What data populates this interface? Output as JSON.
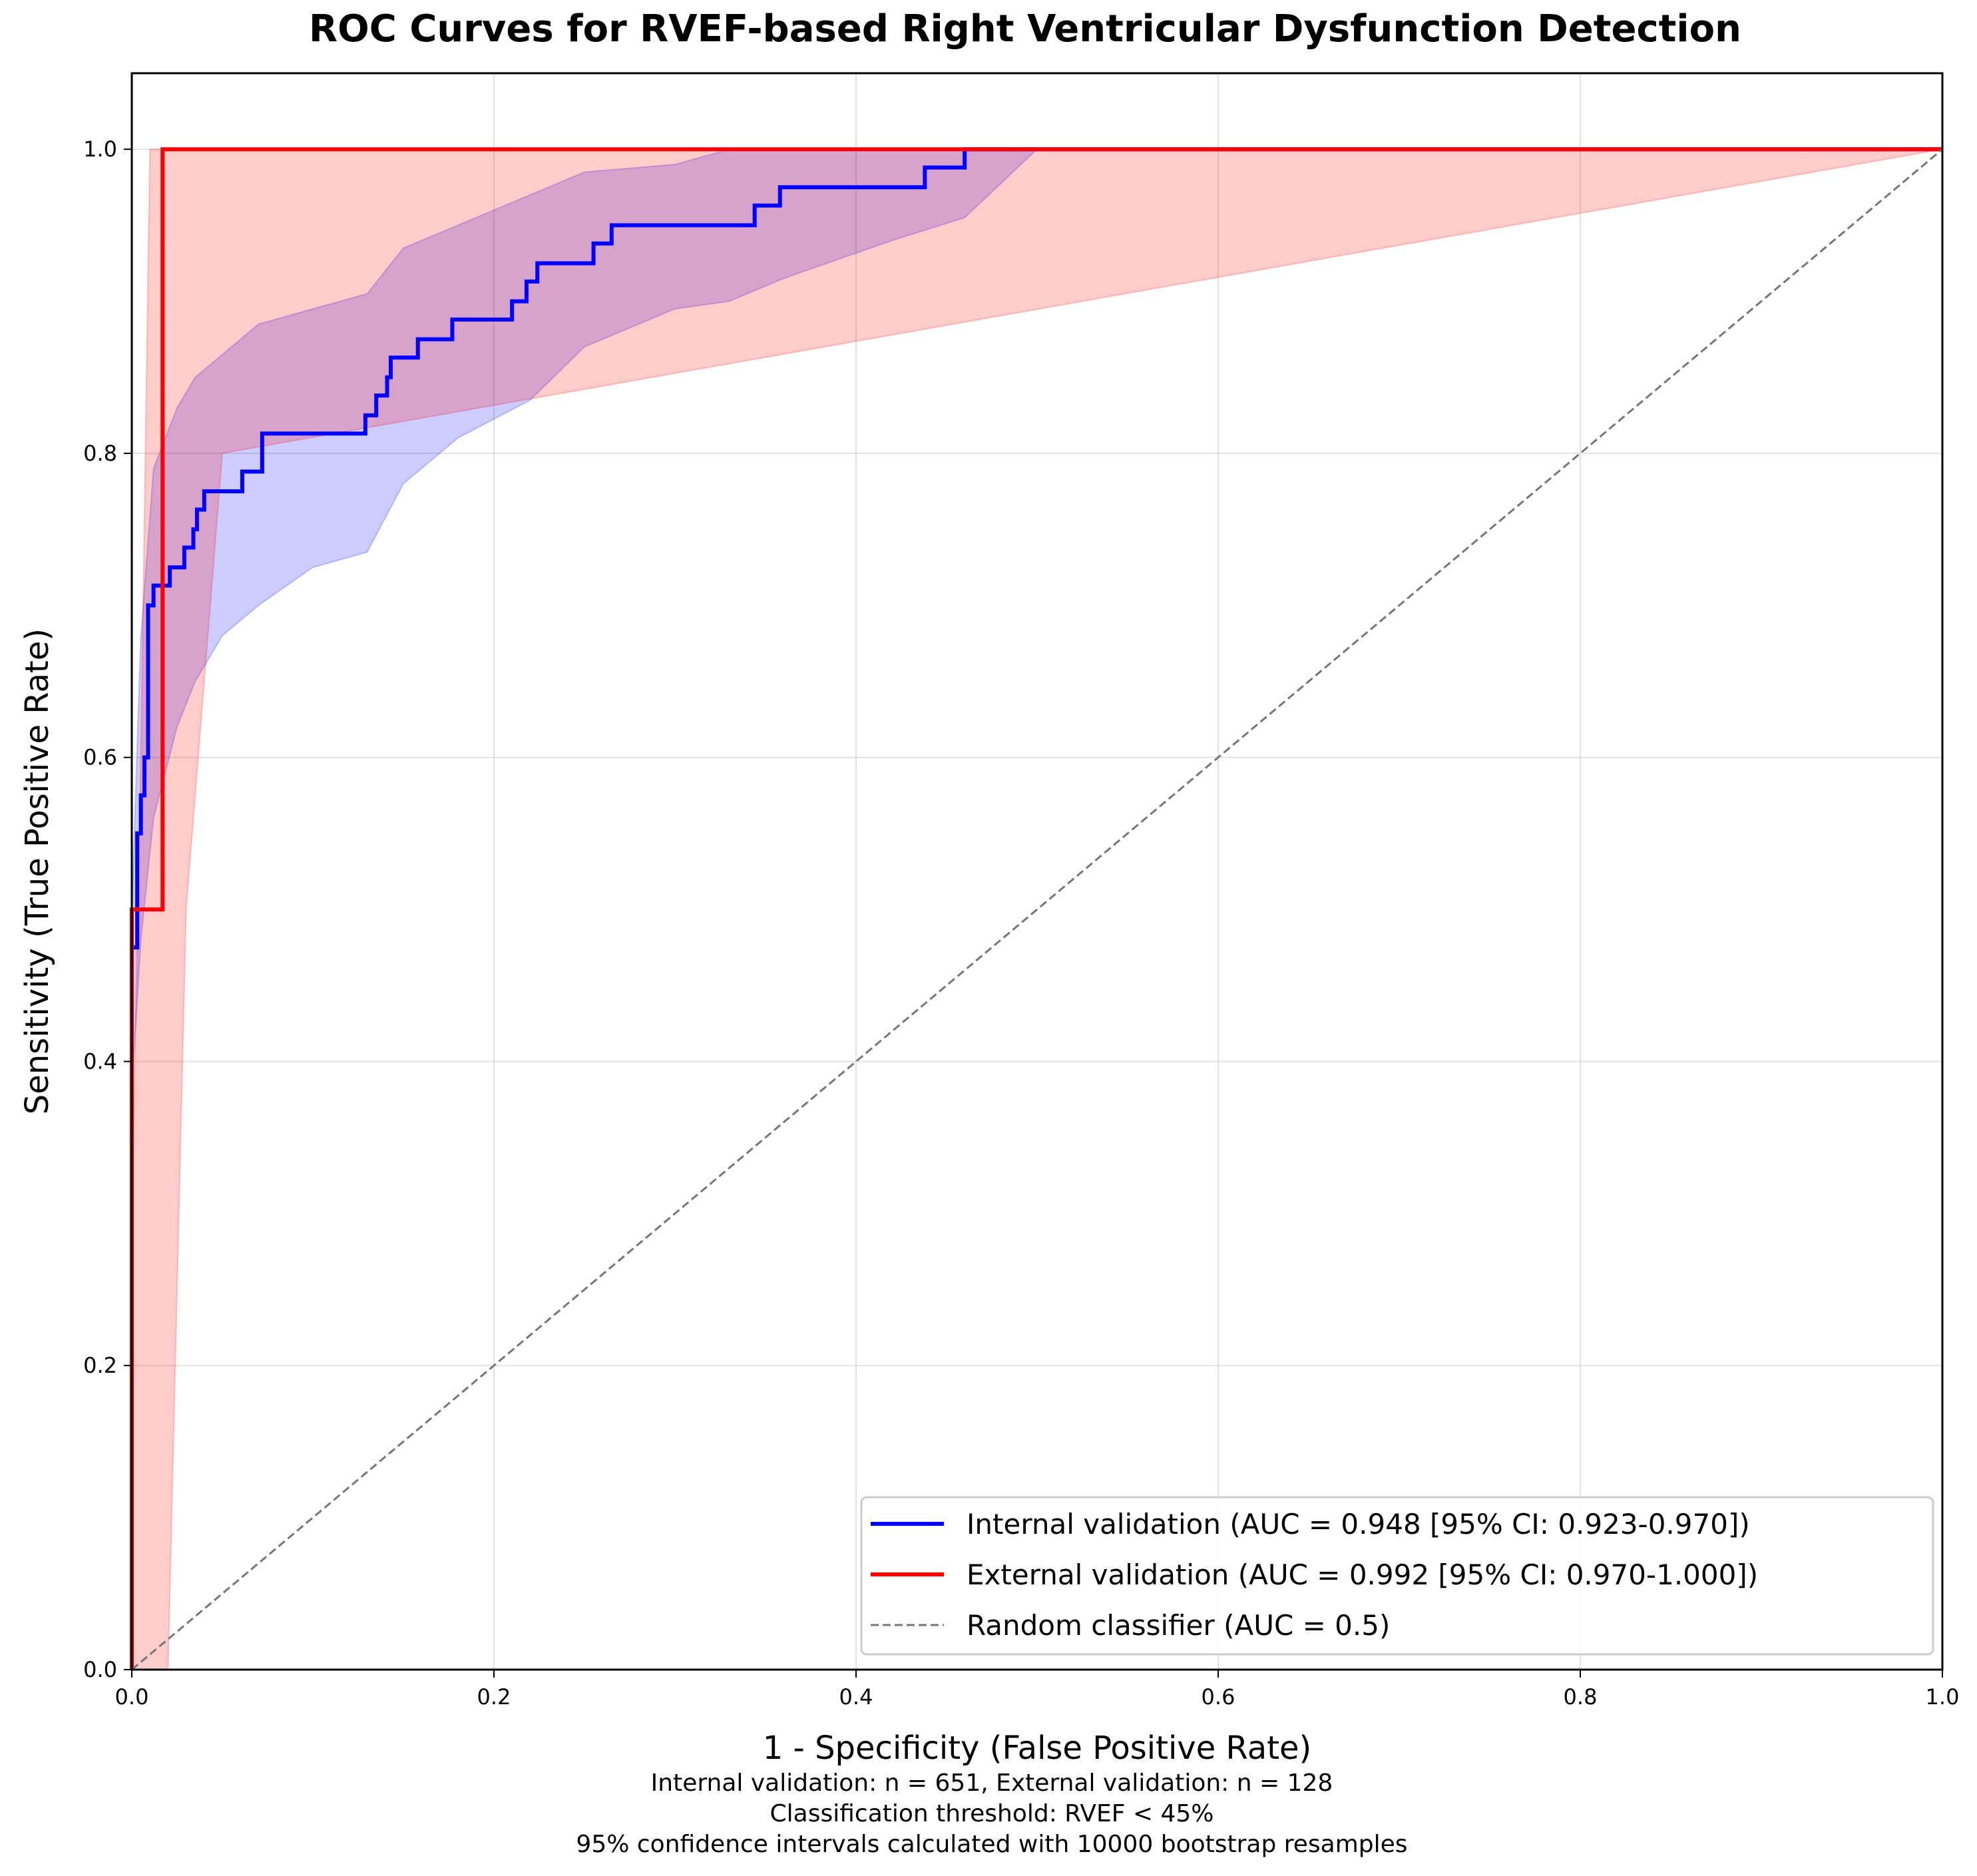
{
  "chart_data": {
    "type": "line",
    "title": "ROC Curves for RVEF-based Right Ventricular Dysfunction Detection",
    "xlabel": "1 - Specificity (False Positive Rate)",
    "ylabel": "Sensitivity (True Positive Rate)",
    "xlim": [
      0,
      1
    ],
    "ylim": [
      0,
      1.05
    ],
    "xticks": [
      0,
      0.2,
      0.4,
      0.6,
      0.8,
      1.0
    ],
    "xtick_labels": [
      "0.0",
      "0.2",
      "0.4",
      "0.6",
      "0.8",
      "1.0"
    ],
    "yticks": [
      0,
      0.2,
      0.4,
      0.6,
      0.8,
      1.0
    ],
    "ytick_labels": [
      "0.0",
      "0.2",
      "0.4",
      "0.6",
      "0.8",
      "1.0"
    ],
    "grid": true,
    "legend_position": "lower-right",
    "series": [
      {
        "name": "Internal validation (AUC = 0.948 [95% CI: 0.923-0.970])",
        "color": "#0000ff",
        "band_color": "#0000ff",
        "step": true,
        "x": [
          0,
          0.003,
          0.003,
          0.005,
          0.005,
          0.007,
          0.007,
          0.009,
          0.009,
          0.012,
          0.012,
          0.021,
          0.021,
          0.029,
          0.029,
          0.034,
          0.034,
          0.036,
          0.036,
          0.04,
          0.04,
          0.061,
          0.061,
          0.072,
          0.072,
          0.129,
          0.129,
          0.135,
          0.135,
          0.141,
          0.141,
          0.143,
          0.143,
          0.158,
          0.158,
          0.177,
          0.177,
          0.21,
          0.21,
          0.218,
          0.218,
          0.224,
          0.224,
          0.255,
          0.255,
          0.265,
          0.265,
          0.344,
          0.344,
          0.358,
          0.358,
          0.438,
          0.438,
          0.46,
          0.46,
          1.0
        ],
        "y": [
          0.475,
          0.475,
          0.55,
          0.55,
          0.575,
          0.575,
          0.6,
          0.6,
          0.7,
          0.7,
          0.713,
          0.713,
          0.725,
          0.725,
          0.738,
          0.738,
          0.75,
          0.75,
          0.763,
          0.763,
          0.775,
          0.775,
          0.788,
          0.788,
          0.813,
          0.813,
          0.825,
          0.825,
          0.838,
          0.838,
          0.85,
          0.85,
          0.863,
          0.863,
          0.875,
          0.875,
          0.888,
          0.888,
          0.9,
          0.9,
          0.913,
          0.913,
          0.925,
          0.925,
          0.938,
          0.938,
          0.95,
          0.95,
          0.963,
          0.963,
          0.975,
          0.975,
          0.988,
          0.988,
          1.0,
          1.0
        ],
        "ci_x": [
          0,
          0.005,
          0.012,
          0.025,
          0.035,
          0.05,
          0.07,
          0.1,
          0.13,
          0.15,
          0.18,
          0.22,
          0.25,
          0.3,
          0.33,
          0.36,
          0.42,
          0.46,
          0.5,
          0.52,
          1.0
        ],
        "ci_lower": [
          0.38,
          0.48,
          0.56,
          0.62,
          0.65,
          0.68,
          0.7,
          0.725,
          0.735,
          0.78,
          0.81,
          0.835,
          0.87,
          0.895,
          0.9,
          0.915,
          0.94,
          0.955,
          1.0,
          1.0,
          1.0
        ],
        "ci_upper": [
          0.5,
          0.68,
          0.79,
          0.83,
          0.85,
          0.865,
          0.885,
          0.895,
          0.905,
          0.935,
          0.95,
          0.97,
          0.985,
          0.99,
          1.0,
          1.0,
          1.0,
          1.0,
          1.0,
          1.0,
          1.0
        ]
      },
      {
        "name": "External validation (AUC = 0.992 [95% CI: 0.970-1.000])",
        "color": "#ff0000",
        "band_color": "#ff0000",
        "step": true,
        "x": [
          0,
          0,
          0.017,
          0.017,
          1.0
        ],
        "y": [
          0,
          0.5,
          0.5,
          1.0,
          1.0
        ],
        "ci_x": [
          0,
          0.005,
          0.01,
          0.015,
          0.02,
          0.025,
          0.03,
          0.04,
          0.05,
          1.0
        ],
        "ci_lower": [
          0,
          0,
          0,
          0,
          0,
          0.25,
          0.5,
          0.65,
          0.8,
          1.0
        ],
        "ci_upper": [
          0.3,
          0.6,
          1.0,
          1.0,
          1.0,
          1.0,
          1.0,
          1.0,
          1.0,
          1.0
        ]
      },
      {
        "name": "Random classifier (AUC = 0.5)",
        "color": "#777777",
        "dashed": true,
        "x": [
          0,
          1
        ],
        "y": [
          0,
          1
        ]
      }
    ],
    "annotations": [
      "Internal validation: n = 651, External validation: n = 128",
      "Classification threshold: RVEF < 45%",
      "95% confidence intervals calculated with 10000 bootstrap resamples"
    ]
  }
}
